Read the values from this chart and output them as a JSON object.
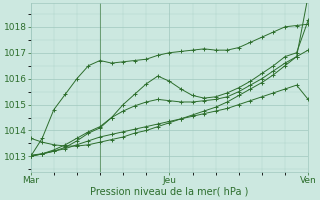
{
  "xlabel": "Pression niveau de la mer( hPa )",
  "bg_color": "#cce8e0",
  "grid_color": "#a0c8be",
  "line_color": "#2d6e2d",
  "yticks": [
    1013,
    1014,
    1015,
    1016,
    1017,
    1018
  ],
  "ylim": [
    1012.4,
    1018.9
  ],
  "xlim": [
    0,
    48
  ],
  "xtick_positions": [
    0,
    24,
    48
  ],
  "xtick_labels": [
    "Mar",
    "Jeu",
    "Ven"
  ],
  "vlines": [
    12,
    48
  ],
  "series": [
    [
      [
        0,
        1013.0
      ],
      [
        2,
        1013.7
      ],
      [
        4,
        1014.8
      ],
      [
        6,
        1015.4
      ],
      [
        8,
        1016.0
      ],
      [
        10,
        1016.5
      ],
      [
        12,
        1016.7
      ],
      [
        14,
        1016.6
      ],
      [
        16,
        1016.65
      ],
      [
        18,
        1016.7
      ],
      [
        20,
        1016.75
      ],
      [
        22,
        1016.9
      ],
      [
        24,
        1017.0
      ],
      [
        26,
        1017.05
      ],
      [
        28,
        1017.1
      ],
      [
        30,
        1017.15
      ],
      [
        32,
        1017.1
      ],
      [
        34,
        1017.1
      ],
      [
        36,
        1017.2
      ],
      [
        38,
        1017.4
      ],
      [
        40,
        1017.6
      ],
      [
        42,
        1017.8
      ],
      [
        44,
        1018.0
      ],
      [
        46,
        1018.05
      ],
      [
        48,
        1018.1
      ]
    ],
    [
      [
        0,
        1013.0
      ],
      [
        2,
        1013.1
      ],
      [
        4,
        1013.2
      ],
      [
        6,
        1013.35
      ],
      [
        8,
        1013.6
      ],
      [
        10,
        1013.9
      ],
      [
        12,
        1014.1
      ],
      [
        14,
        1014.5
      ],
      [
        16,
        1015.0
      ],
      [
        18,
        1015.4
      ],
      [
        20,
        1015.8
      ],
      [
        22,
        1016.1
      ],
      [
        24,
        1015.9
      ],
      [
        26,
        1015.6
      ],
      [
        28,
        1015.35
      ],
      [
        30,
        1015.25
      ],
      [
        32,
        1015.3
      ],
      [
        34,
        1015.45
      ],
      [
        36,
        1015.65
      ],
      [
        38,
        1015.9
      ],
      [
        40,
        1016.2
      ],
      [
        42,
        1016.5
      ],
      [
        44,
        1016.85
      ],
      [
        46,
        1017.0
      ],
      [
        48,
        1018.25
      ]
    ],
    [
      [
        0,
        1013.0
      ],
      [
        2,
        1013.1
      ],
      [
        4,
        1013.25
      ],
      [
        6,
        1013.45
      ],
      [
        8,
        1013.7
      ],
      [
        10,
        1013.95
      ],
      [
        12,
        1014.15
      ],
      [
        14,
        1014.5
      ],
      [
        16,
        1014.75
      ],
      [
        18,
        1014.95
      ],
      [
        20,
        1015.1
      ],
      [
        22,
        1015.2
      ],
      [
        24,
        1015.15
      ],
      [
        26,
        1015.1
      ],
      [
        28,
        1015.1
      ],
      [
        30,
        1015.15
      ],
      [
        32,
        1015.2
      ],
      [
        34,
        1015.3
      ],
      [
        36,
        1015.5
      ],
      [
        38,
        1015.75
      ],
      [
        40,
        1016.0
      ],
      [
        42,
        1016.3
      ],
      [
        44,
        1016.6
      ],
      [
        46,
        1016.85
      ],
      [
        48,
        1017.1
      ]
    ],
    [
      [
        0,
        1013.05
      ],
      [
        2,
        1013.1
      ],
      [
        4,
        1013.2
      ],
      [
        6,
        1013.3
      ],
      [
        8,
        1013.45
      ],
      [
        10,
        1013.6
      ],
      [
        12,
        1013.75
      ],
      [
        14,
        1013.85
      ],
      [
        16,
        1013.95
      ],
      [
        18,
        1014.05
      ],
      [
        20,
        1014.15
      ],
      [
        22,
        1014.25
      ],
      [
        24,
        1014.35
      ],
      [
        26,
        1014.45
      ],
      [
        28,
        1014.55
      ],
      [
        30,
        1014.65
      ],
      [
        32,
        1014.75
      ],
      [
        34,
        1014.85
      ],
      [
        36,
        1015.0
      ],
      [
        38,
        1015.15
      ],
      [
        40,
        1015.3
      ],
      [
        42,
        1015.45
      ],
      [
        44,
        1015.6
      ],
      [
        46,
        1015.75
      ],
      [
        48,
        1015.2
      ]
    ],
    [
      [
        0,
        1013.7
      ],
      [
        2,
        1013.55
      ],
      [
        4,
        1013.45
      ],
      [
        6,
        1013.4
      ],
      [
        8,
        1013.4
      ],
      [
        10,
        1013.45
      ],
      [
        12,
        1013.55
      ],
      [
        14,
        1013.65
      ],
      [
        16,
        1013.75
      ],
      [
        18,
        1013.9
      ],
      [
        20,
        1014.0
      ],
      [
        22,
        1014.15
      ],
      [
        24,
        1014.3
      ],
      [
        26,
        1014.45
      ],
      [
        28,
        1014.6
      ],
      [
        30,
        1014.75
      ],
      [
        32,
        1014.9
      ],
      [
        34,
        1015.1
      ],
      [
        36,
        1015.35
      ],
      [
        38,
        1015.6
      ],
      [
        40,
        1015.85
      ],
      [
        42,
        1016.15
      ],
      [
        44,
        1016.5
      ],
      [
        46,
        1016.85
      ],
      [
        48,
        1019.2
      ]
    ]
  ]
}
